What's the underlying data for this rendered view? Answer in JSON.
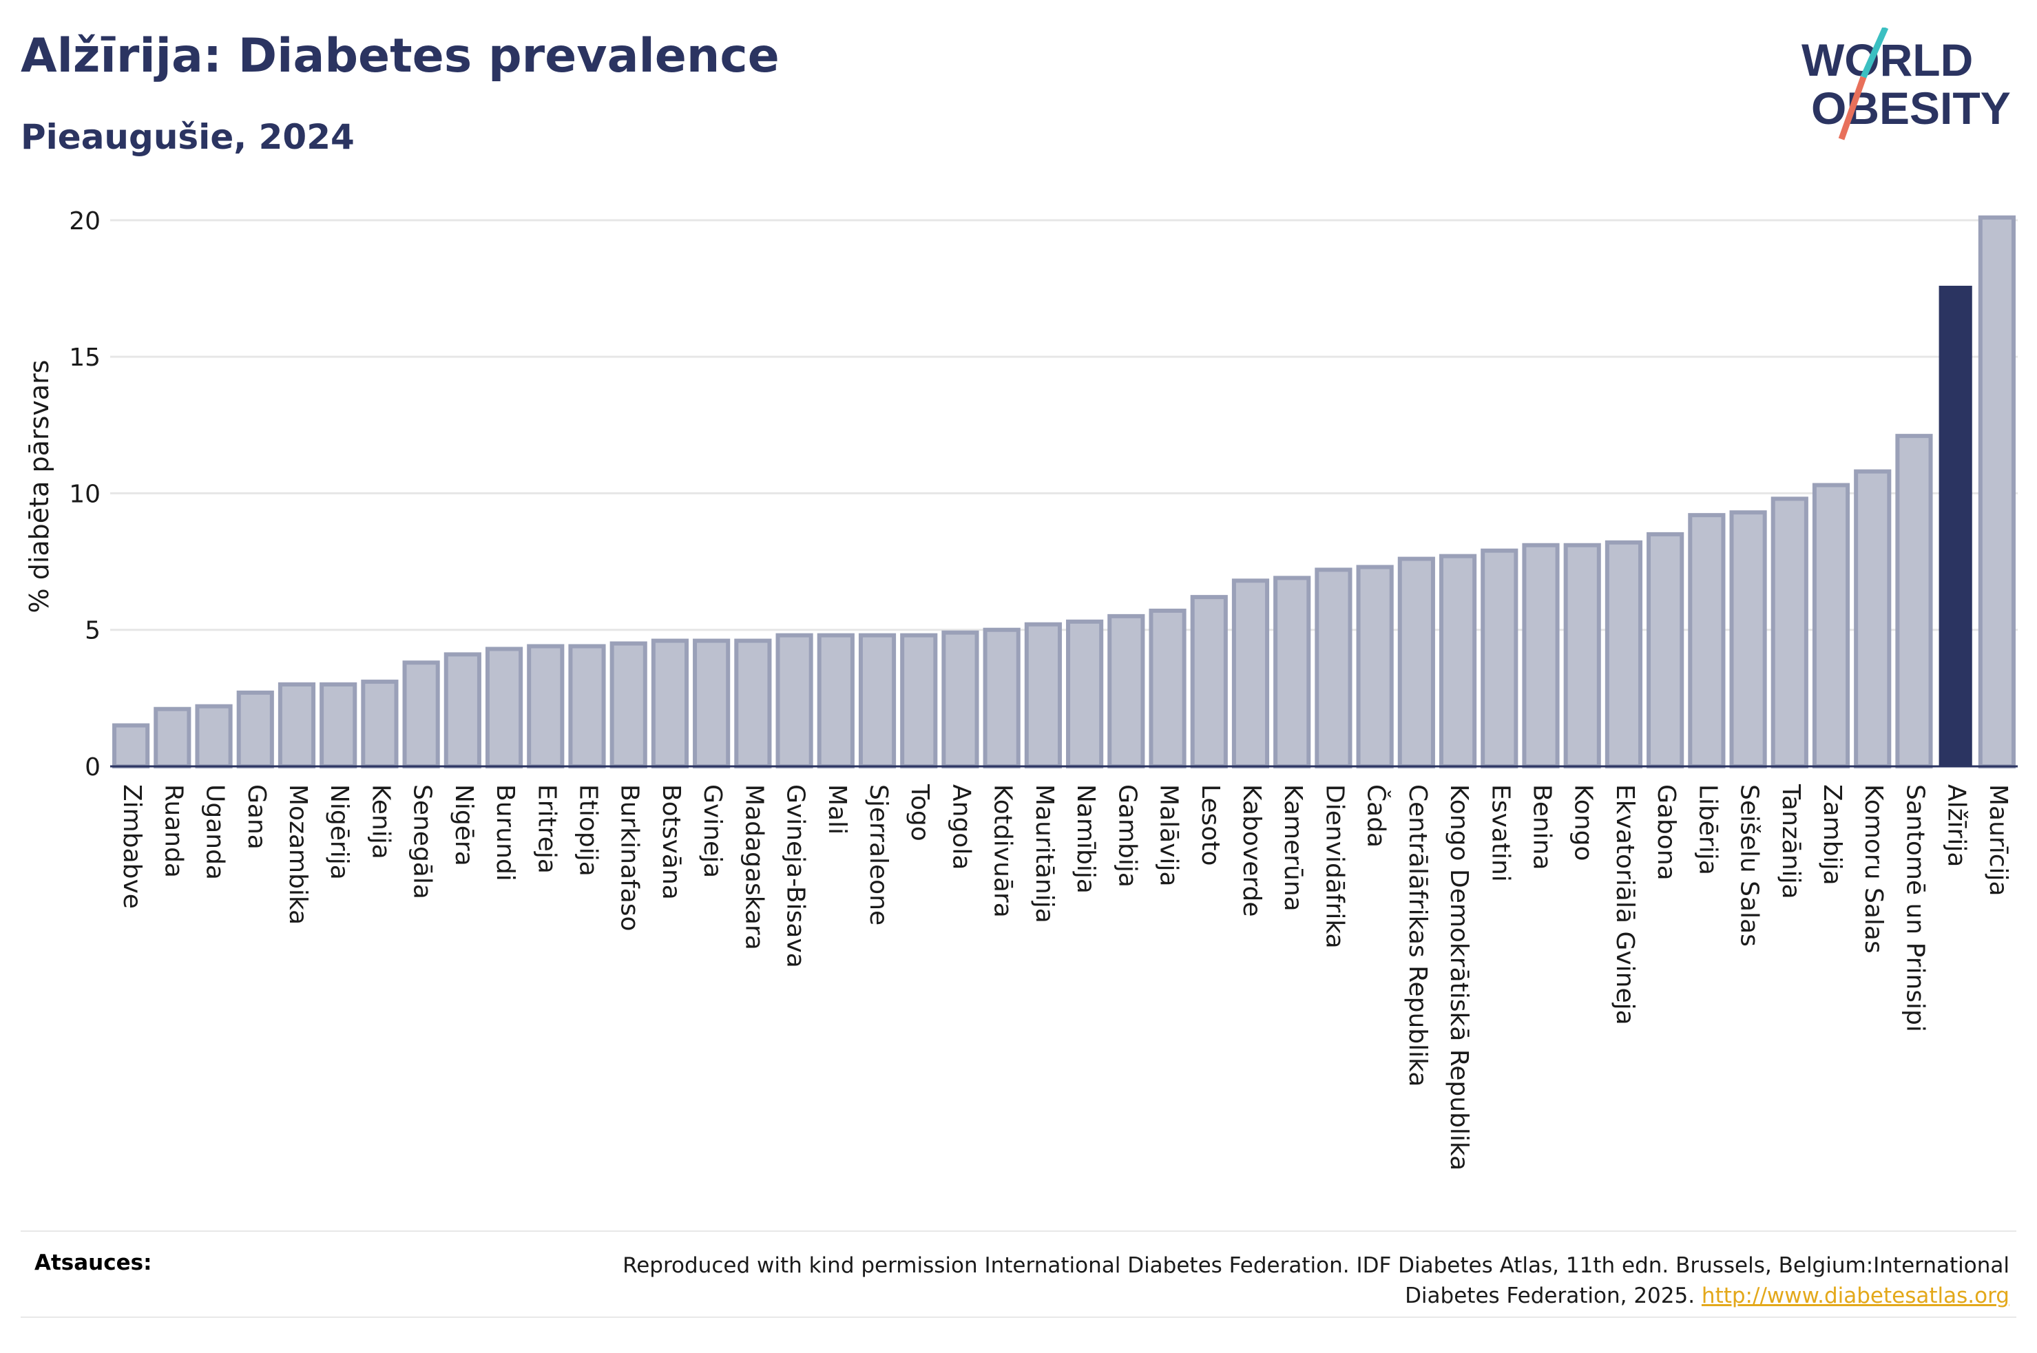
{
  "header": {
    "title": "Alžīrija: Diabetes prevalence",
    "subtitle": "Pieaugušie, 2024"
  },
  "logo": {
    "line1": "WORLD",
    "line2": "OBESITY",
    "accent_colors": [
      "#3bbfc1",
      "#e8705b"
    ]
  },
  "colors": {
    "bar_default": "#bcc0cf",
    "bar_outline": "#9aa0b8",
    "bar_highlight": "#2b3461",
    "text_primary": "#2b3461",
    "link": "#e3a81a"
  },
  "chart_data": {
    "type": "bar",
    "ylabel": "% diabēta pārsvars",
    "ylim": [
      0,
      20.5
    ],
    "yticks": [
      0,
      5,
      10,
      15,
      20
    ],
    "grid": true,
    "highlight": "Alžīrija",
    "categories": [
      "Zimbabve",
      "Ruanda",
      "Uganda",
      "Gana",
      "Mozambika",
      "Nigērija",
      "Kenija",
      "Senegāla",
      "Nigēra",
      "Burundi",
      "Eritreja",
      "Etiopija",
      "Burkinafaso",
      "Botsvāna",
      "Gvineja",
      "Madagaskara",
      "Gvineja-Bisava",
      "Mali",
      "Sjerraleone",
      "Togo",
      "Angola",
      "Kotdivuāra",
      "Mauritānija",
      "Namībija",
      "Gambija",
      "Malāvija",
      "Lesoto",
      "Kaboverde",
      "Kamerūna",
      "Dienvidāfrika",
      "Čada",
      "Centrālāfrikas Republika",
      "Kongo Demokrātiskā Republika",
      "Esvatini",
      "Benina",
      "Kongo",
      "Ekvatoriālā Gvineja",
      "Gabona",
      "Libērija",
      "Seišelu Salas",
      "Tanzānija",
      "Zambija",
      "Komoru Salas",
      "Santomē un Prinsipi",
      "Alžīrija",
      "Maurīcija"
    ],
    "values": [
      1.5,
      2.1,
      2.2,
      2.7,
      3.0,
      3.0,
      3.1,
      3.8,
      4.1,
      4.3,
      4.4,
      4.4,
      4.5,
      4.6,
      4.6,
      4.6,
      4.8,
      4.8,
      4.8,
      4.8,
      4.9,
      5.0,
      5.2,
      5.3,
      5.5,
      5.7,
      6.2,
      6.8,
      6.9,
      7.2,
      7.3,
      7.6,
      7.7,
      7.9,
      8.1,
      8.1,
      8.2,
      8.5,
      9.2,
      9.3,
      9.8,
      10.3,
      10.8,
      12.1,
      17.6,
      20.1
    ]
  },
  "footer": {
    "sources_label": "Atsauces:",
    "sources_text": "Reproduced with kind permission International Diabetes Federation. IDF Diabetes Atlas, 11th edn. Brussels, Belgium:International Diabetes Federation, 2025.",
    "sources_link": "http://www.diabetesatlas.org"
  }
}
